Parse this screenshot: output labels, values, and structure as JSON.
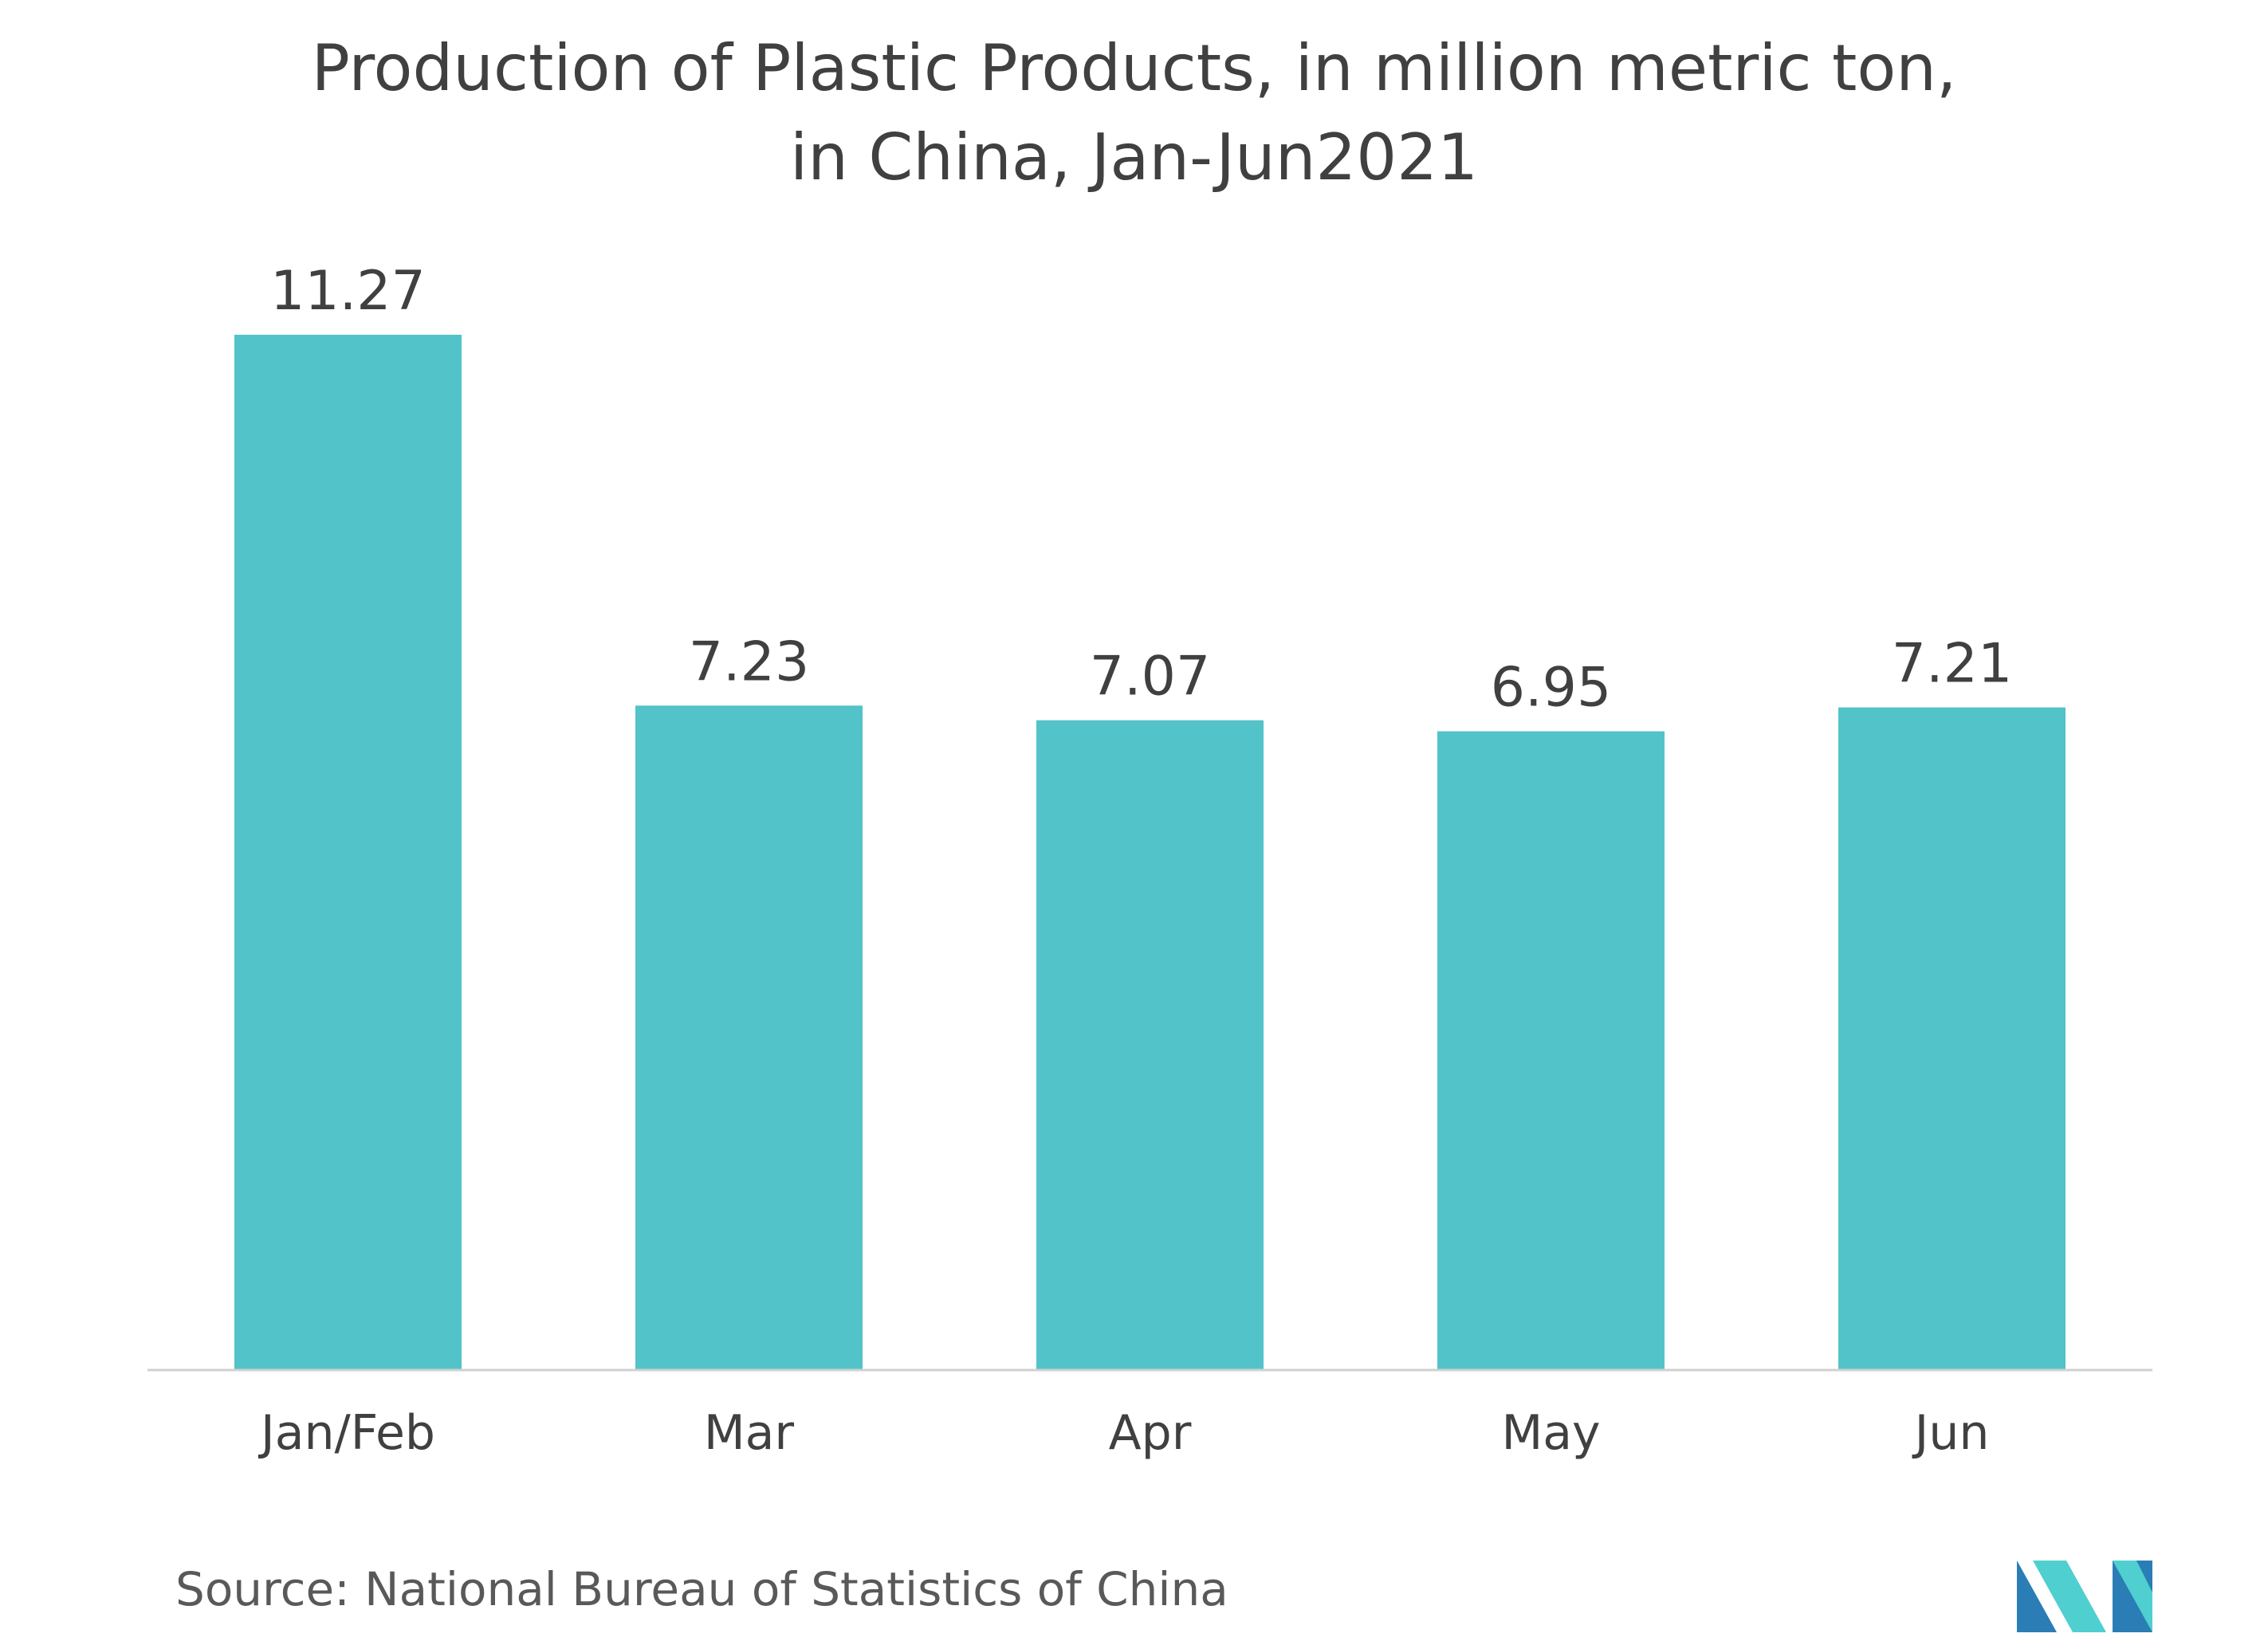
{
  "chart_data": {
    "type": "bar",
    "title": "Production of Plastic Products, in million metric ton, in China, Jan-Jun2021",
    "title_lines": [
      "Production of Plastic Products, in million metric ton,",
      "in China, Jan-Jun2021"
    ],
    "categories": [
      "Jan/Feb",
      "Mar",
      "Apr",
      "May",
      "Jun"
    ],
    "values": [
      11.27,
      7.23,
      7.07,
      6.95,
      7.21
    ],
    "value_labels": [
      "11.27",
      "7.23",
      "7.07",
      "6.95",
      "7.21"
    ],
    "xlabel": "",
    "ylabel": "",
    "ylim": [
      0,
      11.27
    ],
    "grid": false,
    "legend": "none",
    "bar_color": "#52c3c9",
    "axis_color": "#d0d0d0"
  },
  "footer": {
    "source": "Source: National Bureau of Statistics of China"
  },
  "logo": {
    "icon": "mordor-intelligence-logo-icon",
    "colors": [
      "#2a7db5",
      "#4fcfcf"
    ]
  }
}
